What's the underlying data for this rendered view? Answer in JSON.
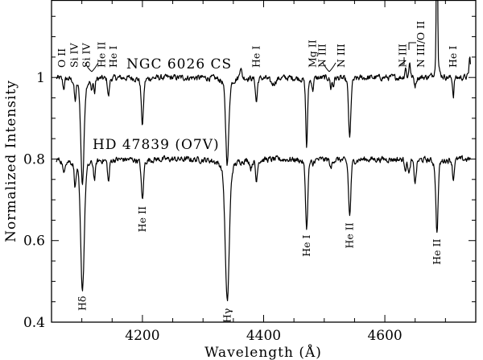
{
  "chart_data": {
    "type": "line",
    "xlabel": "Wavelength (Å)",
    "ylabel": "Normalized Intensity",
    "xlim": [
      4050,
      4750
    ],
    "ylim": [
      0.4,
      1.19
    ],
    "x_ticks": [
      4200,
      4400,
      4600
    ],
    "x_tick_labels": [
      "4200",
      "4400",
      "4600"
    ],
    "x_minor_step": 50,
    "y_ticks": [
      0.4,
      0.6,
      0.8,
      1.0
    ],
    "y_tick_labels": [
      "0.4",
      "0.6",
      "0.8",
      "1"
    ],
    "y_minor_step": 0.05,
    "grid": false,
    "line_color": "#000000",
    "series": [
      {
        "name": "NGC 6026 CS",
        "continuum": 1.0,
        "features": [
          {
            "wavelength": 4070,
            "value": 0.975,
            "width": 2
          },
          {
            "wavelength": 4089,
            "value": 0.95,
            "width": 2
          },
          {
            "wavelength": 4101,
            "value": 0.74,
            "width": 3.5
          },
          {
            "wavelength": 4116,
            "value": 0.97,
            "width": 1.5
          },
          {
            "wavelength": 4121,
            "value": 0.965,
            "width": 1.5
          },
          {
            "wavelength": 4144,
            "value": 0.955,
            "width": 2
          },
          {
            "wavelength": 4200,
            "value": 0.885,
            "width": 2.5
          },
          {
            "wavelength": 4340,
            "value": 0.79,
            "width": 3.5
          },
          {
            "wavelength": 4362,
            "value": 1.03,
            "width": 2
          },
          {
            "wavelength": 4388,
            "value": 0.94,
            "width": 2
          },
          {
            "wavelength": 4415,
            "value": 0.985,
            "width": 6
          },
          {
            "wavelength": 4471,
            "value": 0.83,
            "width": 2
          },
          {
            "wavelength": 4481,
            "value": 0.97,
            "width": 1.5
          },
          {
            "wavelength": 4511,
            "value": 0.975,
            "width": 1.5
          },
          {
            "wavelength": 4515,
            "value": 0.98,
            "width": 1.5
          },
          {
            "wavelength": 4542,
            "value": 0.85,
            "width": 2.5
          },
          {
            "wavelength": 4634,
            "value": 1.025,
            "width": 1.5
          },
          {
            "wavelength": 4641,
            "value": 1.04,
            "width": 1.5
          },
          {
            "wavelength": 4650,
            "value": 0.98,
            "width": 2
          },
          {
            "wavelength": 4686,
            "value": 1.6,
            "width": 1.2
          },
          {
            "wavelength": 4713,
            "value": 0.955,
            "width": 1.5
          },
          {
            "wavelength": 4740,
            "value": 1.05,
            "width": 1.5
          }
        ]
      },
      {
        "name": "HD 47839 (O7V)",
        "continuum": 0.8,
        "features": [
          {
            "wavelength": 4070,
            "value": 0.765,
            "width": 2
          },
          {
            "wavelength": 4089,
            "value": 0.745,
            "width": 2
          },
          {
            "wavelength": 4101,
            "value": 0.48,
            "width": 4
          },
          {
            "wavelength": 4121,
            "value": 0.755,
            "width": 2
          },
          {
            "wavelength": 4144,
            "value": 0.745,
            "width": 2
          },
          {
            "wavelength": 4200,
            "value": 0.7,
            "width": 2.5
          },
          {
            "wavelength": 4340,
            "value": 0.45,
            "width": 4.5
          },
          {
            "wavelength": 4379,
            "value": 0.78,
            "width": 2
          },
          {
            "wavelength": 4388,
            "value": 0.745,
            "width": 2
          },
          {
            "wavelength": 4471,
            "value": 0.63,
            "width": 2.5
          },
          {
            "wavelength": 4481,
            "value": 0.785,
            "width": 1.5
          },
          {
            "wavelength": 4511,
            "value": 0.775,
            "width": 2
          },
          {
            "wavelength": 4542,
            "value": 0.66,
            "width": 2.5
          },
          {
            "wavelength": 4634,
            "value": 0.78,
            "width": 2
          },
          {
            "wavelength": 4640,
            "value": 0.765,
            "width": 2
          },
          {
            "wavelength": 4650,
            "value": 0.745,
            "width": 2.5
          },
          {
            "wavelength": 4686,
            "value": 0.62,
            "width": 2.5
          },
          {
            "wavelength": 4713,
            "value": 0.75,
            "width": 1.8
          }
        ]
      }
    ],
    "series_labels": [
      "NGC 6026 CS",
      "HD 47839 (O7V)"
    ],
    "annotations": [
      {
        "text": "O II",
        "wavelength": 4070,
        "series": 0
      },
      {
        "text": "Si IV",
        "wavelength": 4089,
        "series": 0
      },
      {
        "text": "Si IV",
        "wavelength": 4116,
        "series": 0
      },
      {
        "text": "He II",
        "wavelength": 4125,
        "series": 0
      },
      {
        "text": "He I",
        "wavelength": 4144,
        "series": 0
      },
      {
        "text": "He I",
        "wavelength": 4388,
        "series": 0
      },
      {
        "text": "Mg II",
        "wavelength": 4481,
        "series": 0
      },
      {
        "text": "N III",
        "wavelength": 4505,
        "series": 0
      },
      {
        "text": "N III",
        "wavelength": 4520,
        "series": 0
      },
      {
        "text": "N III",
        "wavelength": 4630,
        "series": 0
      },
      {
        "text": "N III/O II",
        "wavelength": 4660,
        "series": 0
      },
      {
        "text": "He I",
        "wavelength": 4713,
        "series": 0
      },
      {
        "text": "Hδ",
        "wavelength": 4101,
        "series": 1
      },
      {
        "text": "He II",
        "wavelength": 4200,
        "series": 1
      },
      {
        "text": "Hγ",
        "wavelength": 4340,
        "series": 1
      },
      {
        "text": "He I",
        "wavelength": 4471,
        "series": 1
      },
      {
        "text": "He II",
        "wavelength": 4542,
        "series": 1
      },
      {
        "text": "He II",
        "wavelength": 4686,
        "series": 1
      }
    ]
  }
}
